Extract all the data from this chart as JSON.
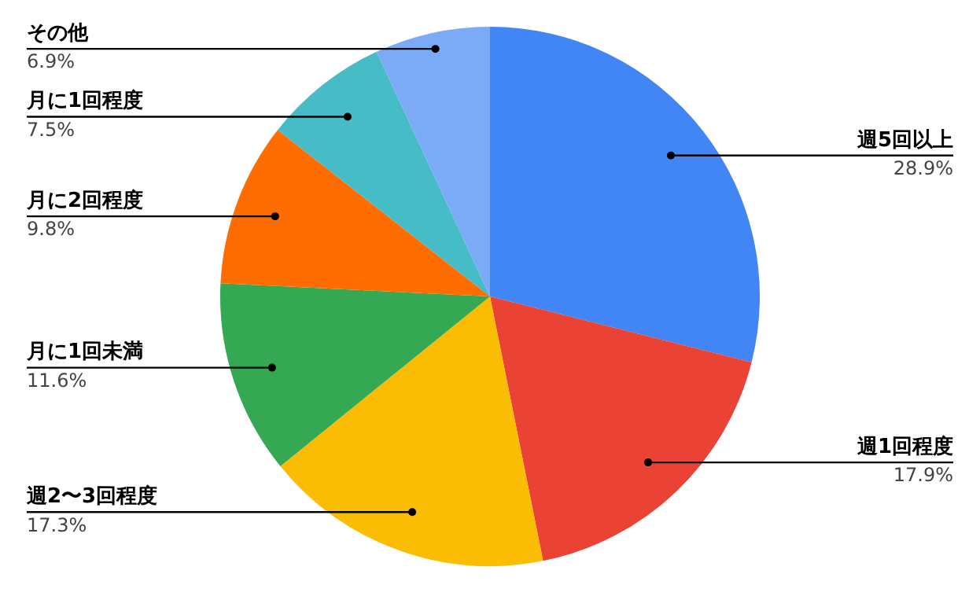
{
  "chart_data": {
    "type": "pie",
    "categories": [
      "週5回以上",
      "週1回程度",
      "週2〜3回程度",
      "月に1回未満",
      "月に2回程度",
      "月に1回程度",
      "その他"
    ],
    "values": [
      28.9,
      17.9,
      17.3,
      11.6,
      9.8,
      7.5,
      6.9
    ],
    "colors": [
      "#4285f4",
      "#ea4335",
      "#fbbc04",
      "#34a853",
      "#ff6d01",
      "#46bdc6",
      "#7baaf7"
    ],
    "value_labels": [
      "28.9%",
      "17.9%",
      "17.3%",
      "11.6%",
      "9.8%",
      "7.5%",
      "6.9%"
    ],
    "legend": false
  }
}
